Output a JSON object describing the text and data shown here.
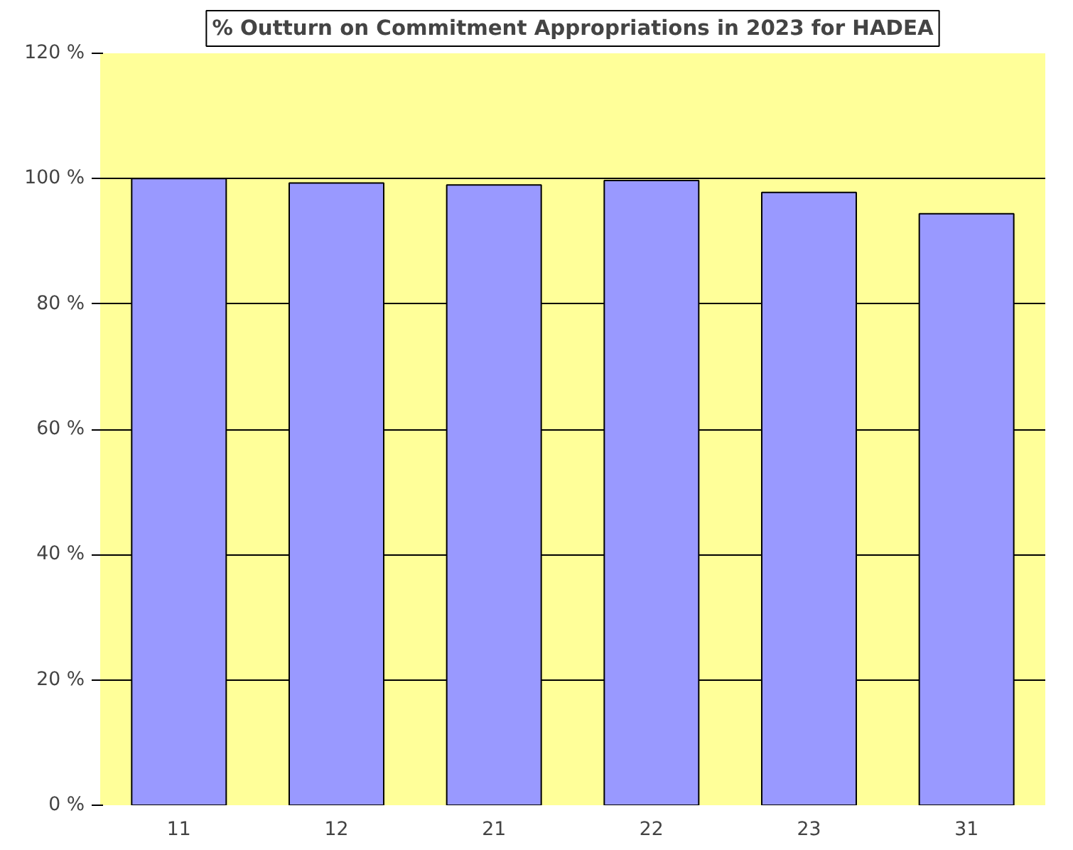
{
  "chart_data": {
    "type": "bar",
    "title": "% Outturn on Commitment Appropriations in 2023 for HADEA",
    "categories": [
      "11",
      "12",
      "21",
      "22",
      "23",
      "31"
    ],
    "values": [
      100,
      99.3,
      99,
      99.7,
      97.8,
      94.4
    ],
    "color": "#9999ff",
    "ylim": [
      0,
      120
    ],
    "yticks": [
      {
        "value": 0,
        "label": "0 %"
      },
      {
        "value": 20,
        "label": "20 %"
      },
      {
        "value": 40,
        "label": "40 %"
      },
      {
        "value": 60,
        "label": "60 %"
      },
      {
        "value": 80,
        "label": "80 %"
      },
      {
        "value": 100,
        "label": "100 %"
      },
      {
        "value": 120,
        "label": "120 %"
      }
    ],
    "grid": "y"
  }
}
